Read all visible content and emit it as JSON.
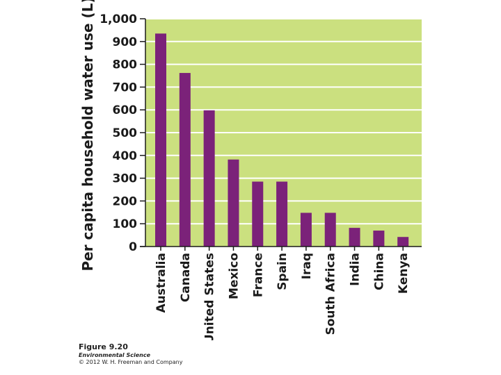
{
  "chart_data": {
    "type": "bar",
    "ylabel": "Per capita household water use (L)",
    "xlabel": "",
    "categories": [
      "Australia",
      "Canada",
      "United States",
      "Mexico",
      "France",
      "Spain",
      "Iraq",
      "South Africa",
      "India",
      "China",
      "Kenya"
    ],
    "values": [
      935,
      762,
      598,
      382,
      285,
      285,
      148,
      148,
      82,
      70,
      42
    ],
    "ylim": [
      0,
      1000
    ],
    "yticks": [
      0,
      100,
      200,
      300,
      400,
      500,
      600,
      700,
      800,
      900,
      1000
    ],
    "ytick_labels": [
      "0",
      "100",
      "200",
      "300",
      "400",
      "500",
      "600",
      "700",
      "800",
      "900",
      "1,000"
    ],
    "grid": true,
    "colors": {
      "plot_background": "#cbe07f",
      "bar": "#7b2279",
      "gridline": "#ffffff",
      "axis": "#1a1a1a"
    }
  },
  "caption": {
    "figure_number": "Figure 9.20",
    "book_title": "Environmental Science",
    "copyright": "© 2012 W. H. Freeman and Company"
  }
}
